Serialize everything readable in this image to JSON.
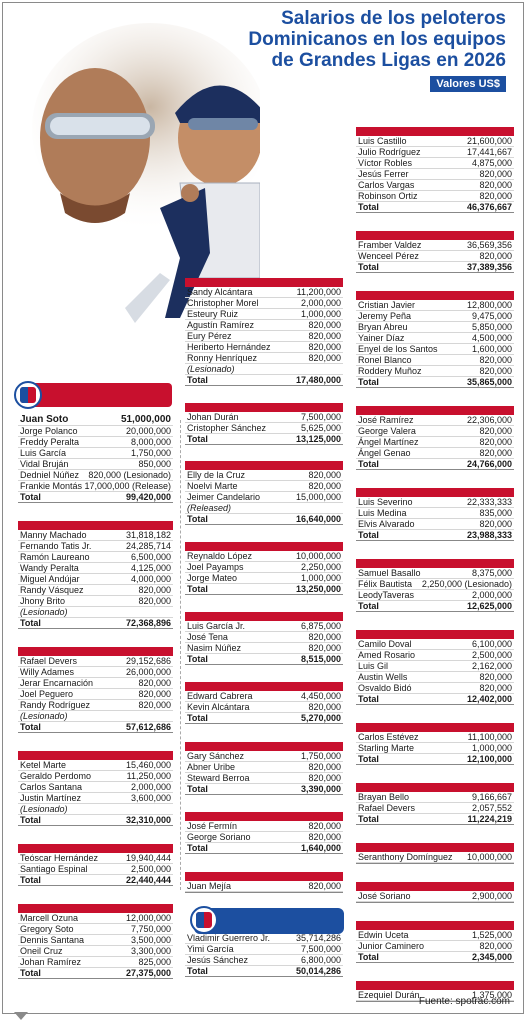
{
  "title_lines": [
    "Salarios de los peloteros",
    "Dominicanos en los equipos",
    "de Grandes Ligas en 2026"
  ],
  "subtitle": "Valores US$",
  "source": "Fuente: spotrac.com",
  "colors": {
    "accent_red": "#c8102e",
    "accent_blue": "#1c4fa0"
  },
  "logos": {
    "left": "league-logo",
    "middle": "league-logo"
  },
  "col1": [
    {
      "rows": [
        [
          "Juan Soto",
          "51,000,000"
        ],
        [
          "Jorge Polanco",
          "20,000,000"
        ],
        [
          "Freddy Peralta",
          "8,000,000"
        ],
        [
          "Luis García",
          "1,750,000"
        ],
        [
          "Vidal Bruján",
          "850,000"
        ],
        [
          "Dedniel Núñez",
          "820,000 (Lesionado)"
        ],
        [
          "Frankie Montás",
          "17,000,000 (Release)"
        ]
      ],
      "total": "99,420,000"
    },
    {
      "rows": [
        [
          "Manny Machado",
          "31,818,182"
        ],
        [
          "Fernando Tatis Jr.",
          "24,285,714"
        ],
        [
          "Ramón Laureano",
          "6,500,000"
        ],
        [
          "Wandy Peralta",
          "4,125,000"
        ],
        [
          "Miguel Andújar",
          "4,000,000"
        ],
        [
          "Randy Vásquez",
          "820,000"
        ],
        [
          "Jhony Brito",
          "820,000"
        ],
        [
          "(Lesionado)",
          ""
        ]
      ],
      "total": "72,368,896"
    },
    {
      "rows": [
        [
          "Rafael Devers",
          "29,152,686"
        ],
        [
          "Willy Adames",
          "26,000,000"
        ],
        [
          "Jerar Encarnación",
          "820,000"
        ],
        [
          "Joel Peguero",
          "820,000"
        ],
        [
          "Randy Rodríguez",
          "820,000"
        ],
        [
          "(Lesionado)",
          ""
        ]
      ],
      "total": "57,612,686"
    },
    {
      "rows": [
        [
          "Ketel Marte",
          "15,460,000"
        ],
        [
          "Geraldo Perdomo",
          "11,250,000"
        ],
        [
          "Carlos Santana",
          "2,000,000"
        ],
        [
          "Justin Martínez",
          "3,600,000"
        ],
        [
          "(Lesionado)",
          ""
        ]
      ],
      "total": "32,310,000"
    },
    {
      "rows": [
        [
          "Teóscar Hernández",
          "19,940,444"
        ],
        [
          "Santiago Espinal",
          "2,500,000"
        ]
      ],
      "total": "22,440,444"
    },
    {
      "rows": [
        [
          "Marcell Ozuna",
          "12,000,000"
        ],
        [
          "Gregory Soto",
          "7,750,000"
        ],
        [
          "Dennis Santana",
          "3,500,000"
        ],
        [
          "Oneil Cruz",
          "3,300,000"
        ],
        [
          "Johan Ramírez",
          "825,000"
        ]
      ],
      "total": "27,375,000"
    }
  ],
  "col2": [
    {
      "rows": [
        [
          "Sandy Alcántara",
          "11,200,000"
        ],
        [
          "Christopher Morel",
          "2,000,000"
        ],
        [
          "Esteury Ruiz",
          "1,000,000"
        ],
        [
          "Agustín Ramírez",
          "820,000"
        ],
        [
          "Eury Pérez",
          "820,000"
        ],
        [
          "Heriberto Hernández",
          "820,000"
        ],
        [
          "Ronny Henríquez",
          "820,000"
        ],
        [
          "(Lesionado)",
          ""
        ]
      ],
      "total": "17,480,000"
    },
    {
      "rows": [
        [
          "Johan Durán",
          "7,500,000"
        ],
        [
          "Cristopher Sánchez",
          "5,625,000"
        ]
      ],
      "total": "13,125,000"
    },
    {
      "rows": [
        [
          "Elly de la Cruz",
          "820,000"
        ],
        [
          "Noelvi Marte",
          "820,000"
        ],
        [
          "Jeimer Candelario",
          "15,000,000"
        ],
        [
          "(Released)",
          ""
        ]
      ],
      "total": "16,640,000"
    },
    {
      "rows": [
        [
          "Reynaldo López",
          "10,000,000"
        ],
        [
          "Joel Payamps",
          "2,250,000"
        ],
        [
          "Jorge Mateo",
          "1,000,000"
        ]
      ],
      "total": "13,250,000"
    },
    {
      "rows": [
        [
          "Luis García Jr.",
          "6,875,000"
        ],
        [
          "José Tena",
          "820,000"
        ],
        [
          "Nasim Núñez",
          "820,000"
        ]
      ],
      "total": "8,515,000"
    },
    {
      "rows": [
        [
          "Edward Cabrera",
          "4,450,000"
        ],
        [
          "Kevin Alcántara",
          "820,000"
        ]
      ],
      "total": "5,270,000"
    },
    {
      "rows": [
        [
          "Gary Sánchez",
          "1,750,000"
        ],
        [
          "Abner Uribe",
          "820,000"
        ],
        [
          "Steward Berroa",
          "820,000"
        ]
      ],
      "total": "3,390,000"
    },
    {
      "rows": [
        [
          "José Fermín",
          "820,000"
        ],
        [
          "George Soriano",
          "820,000"
        ]
      ],
      "total": "1,640,000"
    },
    {
      "rows": [
        [
          "Juan Mejía",
          "820,000"
        ]
      ],
      "total": ""
    },
    {
      "rows": [
        [
          "Vladimir Guerrero Jr.",
          "35,714,286"
        ],
        [
          "Yimi García",
          "7,500,000"
        ],
        [
          "Jesús Sánchez",
          "6,800,000"
        ]
      ],
      "total": "50,014,286"
    }
  ],
  "col3": [
    {
      "rows": [
        [
          "Luis Castillo",
          "21,600,000"
        ],
        [
          "Julio Rodríguez",
          "17,441,667"
        ],
        [
          "Víctor Robles",
          "4,875,000"
        ],
        [
          "Jesús Ferrer",
          "820,000"
        ],
        [
          "Carlos Vargas",
          "820,000"
        ],
        [
          "Robinson Ortiz",
          "820,000"
        ]
      ],
      "total": "46,376,667"
    },
    {
      "rows": [
        [
          "Framber Valdez",
          "36,569,356"
        ],
        [
          "Wenceel Pérez",
          "820,000"
        ]
      ],
      "total": "37,389,356"
    },
    {
      "rows": [
        [
          "Cristian Javier",
          "12,800,000"
        ],
        [
          "Jeremy Peña",
          "9,475,000"
        ],
        [
          "Bryan Abreu",
          "5,850,000"
        ],
        [
          "Yainer Díaz",
          "4,500,000"
        ],
        [
          "Enyel de los Santos",
          "1,600,000"
        ],
        [
          "Ronel Blanco",
          "820,000"
        ],
        [
          "Roddery Muñoz",
          "820,000"
        ]
      ],
      "total": "35,865,000"
    },
    {
      "rows": [
        [
          "José Ramírez",
          "22,306,000"
        ],
        [
          "George Valera",
          "820,000"
        ],
        [
          "Ángel Martínez",
          "820,000"
        ],
        [
          "Ángel Genao",
          "820,000"
        ]
      ],
      "total": "24,766,000"
    },
    {
      "rows": [
        [
          "Luis Severino",
          "22,333,333"
        ],
        [
          "Luis Medina",
          "835,000"
        ],
        [
          "Elvis Alvarado",
          "820,000"
        ]
      ],
      "total": "23,988,333"
    },
    {
      "rows": [
        [
          "Samuel Basallo",
          "8,375,000"
        ],
        [
          "Félix Bautista",
          "2,250,000 (Lesionado)"
        ],
        [
          "LeodyTaveras",
          "2,000,000"
        ]
      ],
      "total": "12,625,000"
    },
    {
      "rows": [
        [
          "Camilo Doval",
          "6,100,000"
        ],
        [
          "Amed Rosario",
          "2,500,000"
        ],
        [
          "Luis Gil",
          "2,162,000"
        ],
        [
          "Austin Wells",
          "820,000"
        ],
        [
          "Osvaldo Bidó",
          "820,000"
        ]
      ],
      "total": "12,402,000"
    },
    {
      "rows": [
        [
          "Carlos Estévez",
          "11,100,000"
        ],
        [
          "Starling Marte",
          "1,000,000"
        ]
      ],
      "total": "12,100,000"
    },
    {
      "rows": [
        [
          "Brayan Bello",
          "9,166,667"
        ],
        [
          "Rafael Devers",
          "2,057,552"
        ]
      ],
      "total": "11,224,219"
    },
    {
      "rows": [
        [
          "Seranthony Domínguez",
          "10,000,000"
        ]
      ],
      "total": ""
    },
    {
      "rows": [
        [
          "José Soriano",
          "2,900,000"
        ]
      ],
      "total": ""
    },
    {
      "rows": [
        [
          "Edwin Uceta",
          "1,525,000"
        ],
        [
          "Junior Caminero",
          "820,000"
        ]
      ],
      "total": "2,345,000"
    },
    {
      "rows": [
        [
          "Ezequiel Durán",
          "1,375,000"
        ]
      ],
      "total": ""
    }
  ],
  "total_label": "Total"
}
